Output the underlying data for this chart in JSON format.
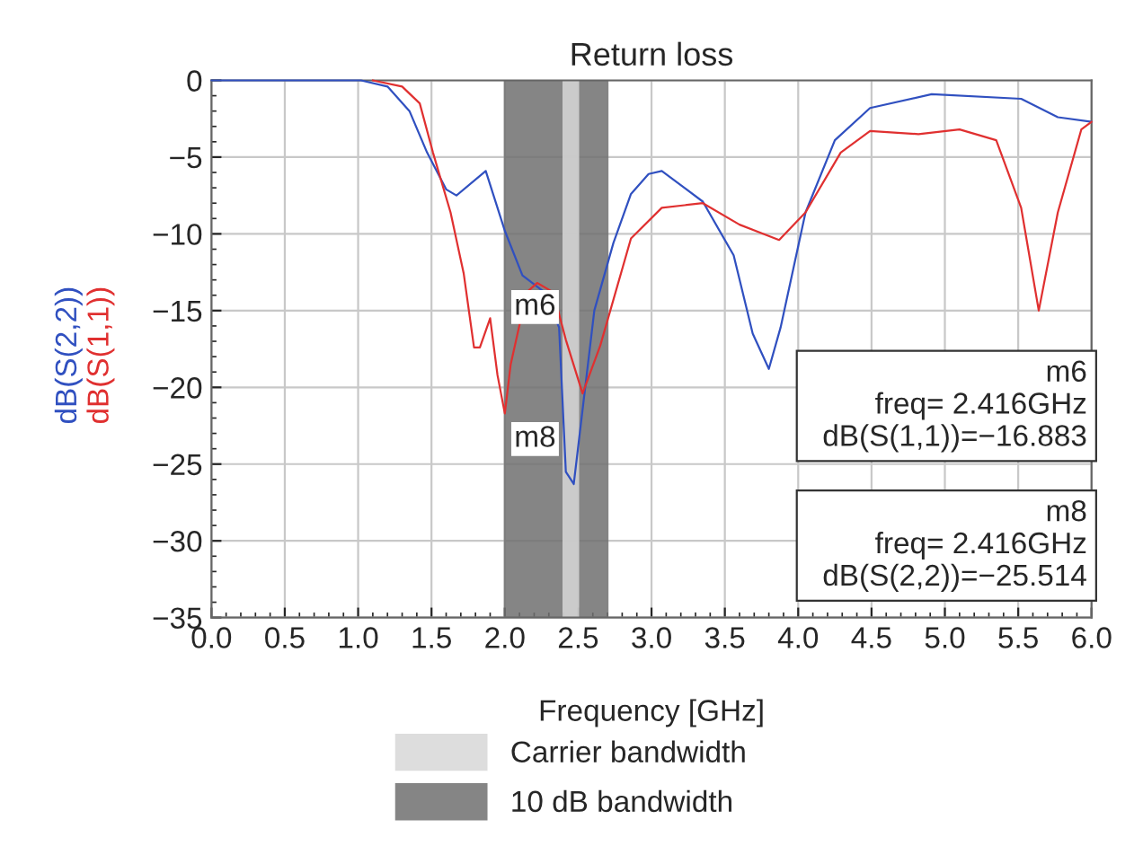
{
  "chart_data": {
    "type": "line",
    "title": "Return loss",
    "xlabel": "Frequency [GHz]",
    "series": [
      {
        "name": "dB(S(2,2))",
        "color": "#3050c0",
        "x": [
          0,
          1.02,
          1.2,
          1.35,
          1.47,
          1.6,
          1.67,
          1.87,
          2.0,
          2.12,
          2.27,
          2.37,
          2.416,
          2.47,
          2.61,
          2.74,
          2.86,
          2.98,
          3.07,
          3.35,
          3.56,
          3.69,
          3.8,
          3.88,
          4.05,
          4.25,
          4.49,
          4.91,
          5.52,
          5.77,
          6.0
        ],
        "values": [
          0,
          0,
          -0.4,
          -2.0,
          -4.7,
          -7.1,
          -7.5,
          -5.9,
          -9.8,
          -12.7,
          -13.8,
          -16.1,
          -25.5,
          -26.3,
          -15,
          -10.6,
          -7.4,
          -6.1,
          -5.9,
          -7.9,
          -11.4,
          -16.5,
          -18.8,
          -16.1,
          -8.6,
          -3.9,
          -1.8,
          -0.9,
          -1.2,
          -2.4,
          -2.7
        ]
      },
      {
        "name": "dB(S(1,1))",
        "color": "#e03030",
        "x": [
          1.1,
          1.3,
          1.42,
          1.51,
          1.63,
          1.72,
          1.79,
          1.83,
          1.9,
          1.95,
          2.0,
          2.04,
          2.15,
          2.22,
          2.33,
          2.416,
          2.53,
          2.65,
          2.86,
          3.07,
          3.35,
          3.6,
          3.87,
          4.05,
          4.29,
          4.49,
          4.82,
          5.1,
          5.35,
          5.52,
          5.64,
          5.77,
          5.93,
          6.0
        ],
        "values": [
          0,
          -0.4,
          -1.5,
          -4.7,
          -8.6,
          -12.6,
          -17.4,
          -17.4,
          -15.5,
          -19.2,
          -21.7,
          -18.5,
          -13.8,
          -13.2,
          -13.8,
          -16.9,
          -20.4,
          -17.3,
          -10.3,
          -8.3,
          -8.0,
          -9.4,
          -10.4,
          -8.6,
          -4.7,
          -3.3,
          -3.5,
          -3.2,
          -3.9,
          -8.3,
          -15,
          -8.6,
          -3.2,
          -2.7
        ]
      }
    ],
    "xlim": [
      0,
      6
    ],
    "ylim": [
      -35,
      0
    ],
    "xticks": [
      {
        "value": 0,
        "label": "0.0"
      },
      {
        "value": 0.5,
        "label": "0.5"
      },
      {
        "value": 1,
        "label": "1.0"
      },
      {
        "value": 1.5,
        "label": "1.5"
      },
      {
        "value": 2,
        "label": "2.0"
      },
      {
        "value": 2.5,
        "label": "2.5"
      },
      {
        "value": 3,
        "label": "3.0"
      },
      {
        "value": 3.5,
        "label": "3.5"
      },
      {
        "value": 4,
        "label": "4.0"
      },
      {
        "value": 4.5,
        "label": "4.5"
      },
      {
        "value": 5,
        "label": "5.0"
      },
      {
        "value": 5.5,
        "label": "5.5"
      },
      {
        "value": 6,
        "label": "6.0"
      }
    ],
    "yticks": [
      {
        "value": 0,
        "label": "0"
      },
      {
        "value": -5,
        "label": "−5"
      },
      {
        "value": -10,
        "label": "−10"
      },
      {
        "value": -15,
        "label": "−15"
      },
      {
        "value": -20,
        "label": "−20"
      },
      {
        "value": -25,
        "label": "−25"
      },
      {
        "value": -30,
        "label": "−30"
      },
      {
        "value": -35,
        "label": "−35"
      }
    ],
    "bands": [
      {
        "axis": "x",
        "from": 2.0,
        "to": 2.7,
        "label": "10 dB bandwidth",
        "color": "#707070"
      },
      {
        "axis": "x",
        "from": 2.4,
        "to": 2.5,
        "label": "Carrier bandwidth",
        "color": "#d8d8d8"
      }
    ],
    "annotations": [
      {
        "text": "m6",
        "x": 2.416,
        "y": -16.9
      },
      {
        "text": "m8",
        "x": 2.416,
        "y": -25.5
      },
      "m6\nfreq= 2.416GHz\n  dB(S(1,1))=−16.883",
      "m8\nfreq= 2.416GHz\n  dB(S(2,2))=−25.514"
    ],
    "grid": true,
    "legend": "bottom",
    "line_style": "solid",
    "marker": "none"
  }
}
